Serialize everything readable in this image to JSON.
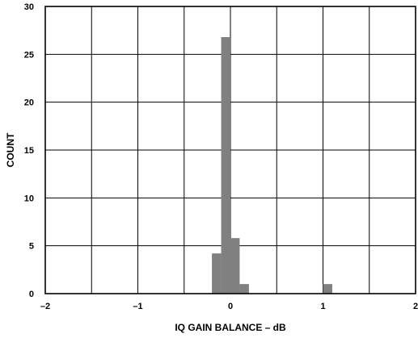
{
  "chart_data": {
    "type": "bar",
    "title": "",
    "xlabel": "IQ GAIN BALANCE – dB",
    "ylabel": "COUNT",
    "xlim": [
      -2,
      2
    ],
    "ylim": [
      0,
      30
    ],
    "xticks": [
      -2,
      -1,
      0,
      1,
      2
    ],
    "xtick_labels": [
      "–2",
      "–1",
      "0",
      "1",
      "2"
    ],
    "yticks": [
      0,
      5,
      10,
      15,
      20,
      25,
      30
    ],
    "ytick_labels": [
      "0",
      "5",
      "10",
      "15",
      "20",
      "25",
      "30"
    ],
    "grid": true,
    "bar_color": "#808080",
    "bin_width": 0.1,
    "bins": [
      {
        "x0": -0.2,
        "x1": -0.1,
        "value": 4.2
      },
      {
        "x0": -0.1,
        "x1": 0.0,
        "value": 26.8
      },
      {
        "x0": 0.0,
        "x1": 0.1,
        "value": 5.8
      },
      {
        "x0": 0.1,
        "x1": 0.2,
        "value": 1.0
      },
      {
        "x0": 1.0,
        "x1": 1.1,
        "value": 1.0
      }
    ]
  }
}
